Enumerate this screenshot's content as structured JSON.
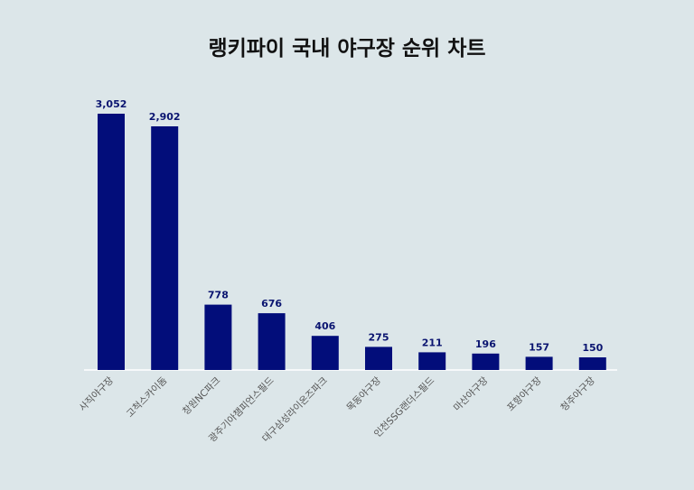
{
  "chart_data": {
    "type": "bar",
    "title": "랭키파이 국내 야구장 순위 차트",
    "categories": [
      "사직야구장",
      "고척스카이돔",
      "창원NC파크",
      "광주기아챔피언스필드",
      "대구삼성라이온즈파크",
      "목동야구장",
      "인천SSG랜더스필드",
      "마산야구장",
      "포항야구장",
      "청주야구장"
    ],
    "values": [
      3052,
      2902,
      778,
      676,
      406,
      275,
      211,
      196,
      157,
      150
    ],
    "value_labels": [
      "3,052",
      "2,902",
      "778",
      "676",
      "406",
      "275",
      "211",
      "196",
      "157",
      "150"
    ],
    "xlabel": "",
    "ylabel": "",
    "ylim": [
      0,
      3052
    ],
    "grid": false,
    "bar_color": "#020d7a",
    "label_color": "#0a1470",
    "background": "#dce6e9"
  }
}
